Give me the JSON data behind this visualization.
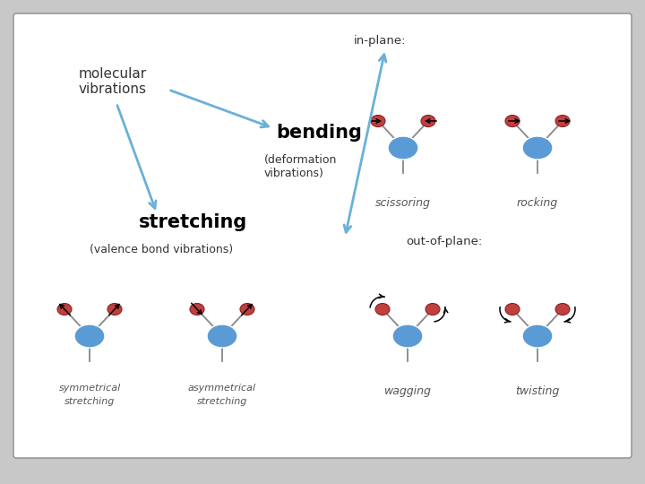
{
  "blue_body_color": "#5b9bd5",
  "red_face": "#c04040",
  "red_edge": "#8b2020",
  "bond_color": "#888888",
  "arrow_blue": "#6ab0d8",
  "bg_color": "white",
  "outer_bg": "#c8c8c8",
  "border_color": "#888888",
  "labels": {
    "molecular_vibrations": "molecular\nvibrations",
    "in_plane": "in-plane:",
    "out_of_plane": "out-of-plane:",
    "bending": "bending",
    "bending_sub": "(deformation\nvibrations)",
    "stretching": "stretching",
    "stretching_sub": "(valence bond vibrations)",
    "scissoring": "scissoring",
    "rocking": "rocking",
    "symmetrical": "symmetrical",
    "asymmetrical": "asymmetrical",
    "stretching2": "stretching",
    "stretching3": "stretching",
    "wagging": "wagging",
    "twisting": "twisting"
  }
}
